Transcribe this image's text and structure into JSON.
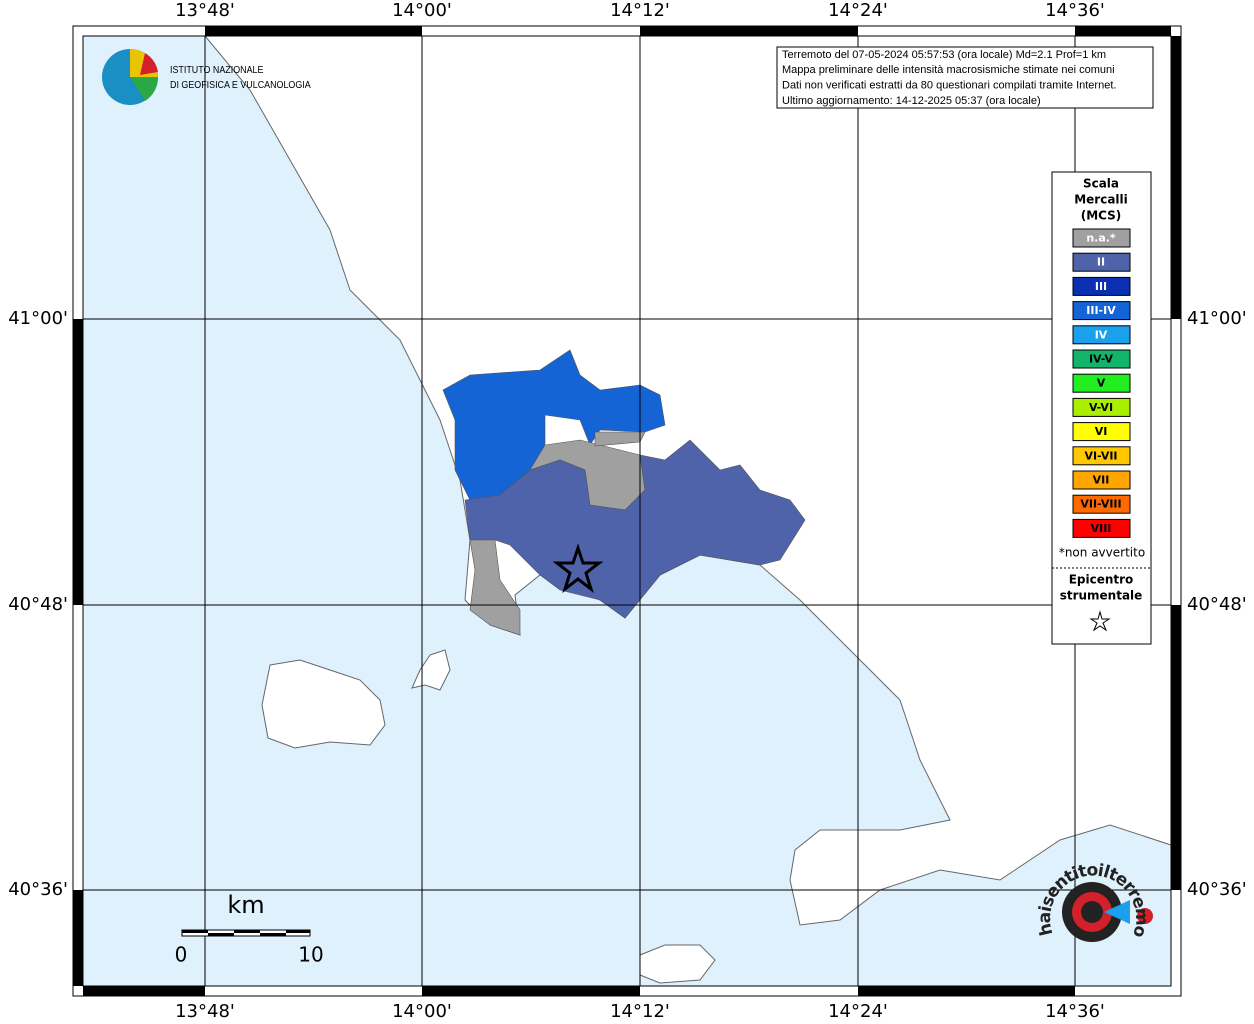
{
  "info_box": [
    "Terremoto del 07-05-2024 05:57:53 (ora locale) Md=2.1 Prof=1 km",
    "Mappa preliminare delle intensità macrosismiche stimate nei comuni",
    "Dati non verificati estratti da 80 questionari compilati tramite Internet.",
    "Ultimo aggiornamento: 14-12-2025 05:37 (ora locale)"
  ],
  "logo": [
    "ISTITUTO NAZIONALE",
    "DI GEOFISICA E VULCANOLOGIA"
  ],
  "longitudes": [
    "13°48'",
    "14°00'",
    "14°12'",
    "14°24'",
    "14°36'"
  ],
  "latitudes": [
    "41°00'",
    "40°48'",
    "40°36'"
  ],
  "legend": {
    "title": [
      "Scala",
      "Mercalli",
      "(MCS)"
    ],
    "items": [
      {
        "label": "n.a.*",
        "color": "#a0a0a0",
        "label_color": "#ffffff"
      },
      {
        "label": "II",
        "color": "#4f63ab",
        "label_color": "#ffffff"
      },
      {
        "label": "III",
        "color": "#0a2fb0",
        "label_color": "#ffffff"
      },
      {
        "label": "III-IV",
        "color": "#1464d6",
        "label_color": "#ffffff"
      },
      {
        "label": "IV",
        "color": "#1aa0ec",
        "label_color": "#ffffff"
      },
      {
        "label": "IV-V",
        "color": "#12b46a",
        "label_color": "#000000"
      },
      {
        "label": "V",
        "color": "#22ee22",
        "label_color": "#000000"
      },
      {
        "label": "V-VI",
        "color": "#aaee00",
        "label_color": "#000000"
      },
      {
        "label": "VI",
        "color": "#ffff00",
        "label_color": "#000000"
      },
      {
        "label": "VI-VII",
        "color": "#ffc800",
        "label_color": "#000000"
      },
      {
        "label": "VII",
        "color": "#ffa500",
        "label_color": "#000000"
      },
      {
        "label": "VII-VIII",
        "color": "#ff6a00",
        "label_color": "#000000"
      },
      {
        "label": "VIII",
        "color": "#ff0000",
        "label_color": "#000000"
      }
    ],
    "footnote": "*non avvertito",
    "epicentre": [
      "Epicentro",
      "strumentale"
    ]
  },
  "scale": {
    "unit": "km",
    "ticks": [
      "0",
      "10"
    ]
  },
  "brand": "haisentitoilterremoto.it"
}
